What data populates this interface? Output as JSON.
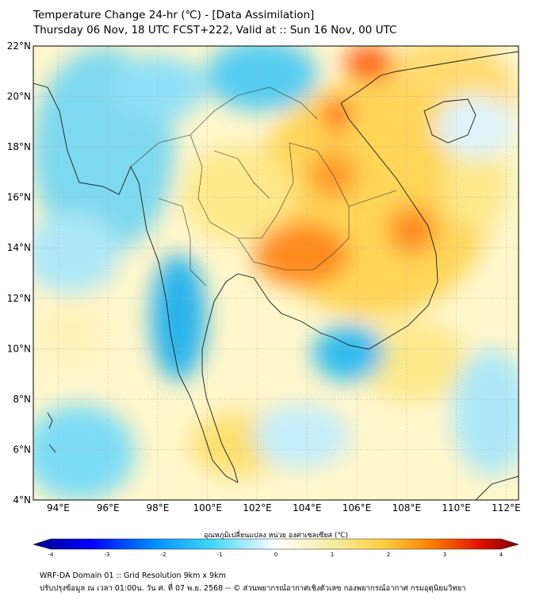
{
  "header": {
    "title": "Temperature Change 24-hr (℃) - [Data Assimilation]",
    "subtitle": "Thursday 06 Nov, 18 UTC FCST+222, Valid at :: Sun 16 Nov, 00 UTC"
  },
  "map": {
    "lat_labels": [
      "22°N",
      "20°N",
      "18°N",
      "16°N",
      "14°N",
      "12°N",
      "10°N",
      "8°N",
      "6°N",
      "4°N"
    ],
    "lon_labels": [
      "94°E",
      "96°E",
      "98°E",
      "100°E",
      "102°E",
      "104°E",
      "106°E",
      "108°E",
      "110°E",
      "112°E"
    ],
    "lat_range": [
      4,
      22
    ],
    "lon_range": [
      93,
      112.5
    ],
    "grid": true,
    "colors": {
      "cold_strong": "#0000a0",
      "cold": "#00c8f0",
      "neutral": "#ffffff",
      "warm": "#f0e68c",
      "hot": "#ff8c00",
      "hot_strong": "#8b0000"
    }
  },
  "colorbar": {
    "label": "อุณหภูมิเปลี่ยนแปลง หน่วย องศาเซลเซียส (℃)",
    "ticks": [
      "-4",
      "-3",
      "-2",
      "-1",
      "0",
      "1",
      "2",
      "3",
      "4"
    ],
    "range": [
      -4,
      4
    ]
  },
  "footer": {
    "line1": "WRF-DA Domain 01 :: Grid Resolution 9km x 9km",
    "line2": "ปรับปรุงข้อมูล ณ เวลา 01:00น. วัน ศ. ที่ 07 พ.ย. 2568 -- © ส่วนพยากรณ์อากาศเชิงตัวเลข กองพยากรณ์อากาศ กรมอุตุนิยมวิทยา"
  }
}
